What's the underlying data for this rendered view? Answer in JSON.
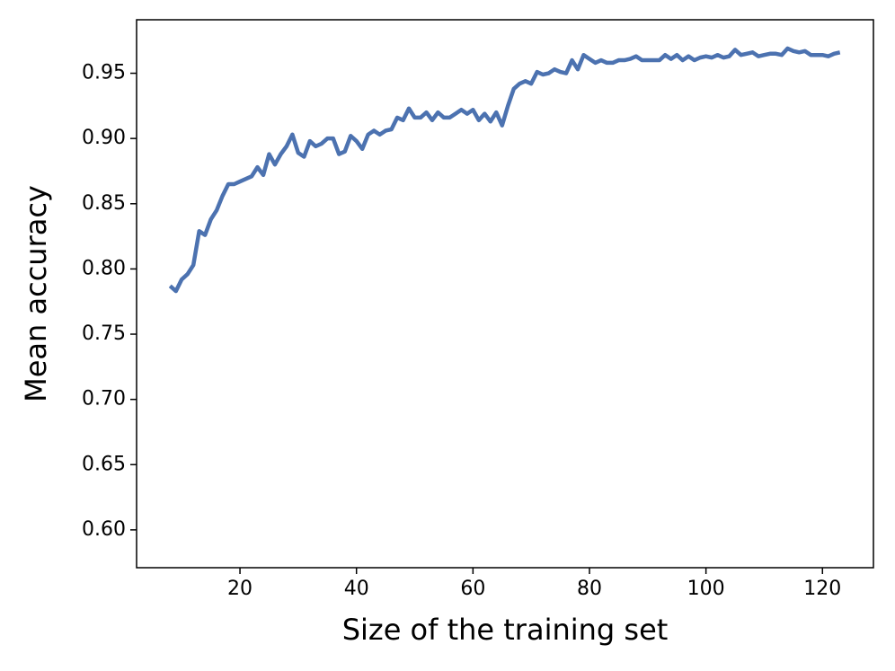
{
  "chart_data": {
    "type": "line",
    "xlabel": "Size of the training set",
    "ylabel": "Mean accuracy",
    "x": [
      8,
      9,
      10,
      11,
      12,
      13,
      14,
      15,
      16,
      17,
      18,
      19,
      20,
      21,
      22,
      23,
      24,
      25,
      26,
      27,
      28,
      29,
      30,
      31,
      32,
      33,
      34,
      35,
      36,
      37,
      38,
      39,
      40,
      41,
      42,
      43,
      44,
      45,
      46,
      47,
      48,
      49,
      50,
      51,
      52,
      53,
      54,
      55,
      56,
      57,
      58,
      59,
      60,
      61,
      62,
      63,
      64,
      65,
      66,
      67,
      68,
      69,
      70,
      71,
      72,
      73,
      74,
      75,
      76,
      77,
      78,
      79,
      80,
      81,
      82,
      83,
      84,
      85,
      86,
      87,
      88,
      89,
      90,
      91,
      92,
      93,
      94,
      95,
      96,
      97,
      98,
      99,
      100,
      101,
      102,
      103,
      104,
      105,
      106,
      107,
      108,
      109,
      110,
      111,
      112,
      113,
      114,
      115,
      116,
      117,
      118,
      119,
      120,
      121,
      122,
      123
    ],
    "series": [
      {
        "color": "#4c72b0",
        "values": [
          0.787,
          0.783,
          0.792,
          0.796,
          0.803,
          0.829,
          0.826,
          0.838,
          0.845,
          0.856,
          0.865,
          0.865,
          0.867,
          0.869,
          0.871,
          0.878,
          0.872,
          0.888,
          0.88,
          0.888,
          0.894,
          0.903,
          0.889,
          0.886,
          0.898,
          0.894,
          0.896,
          0.9,
          0.9,
          0.888,
          0.89,
          0.902,
          0.898,
          0.892,
          0.903,
          0.906,
          0.903,
          0.906,
          0.907,
          0.916,
          0.914,
          0.923,
          0.916,
          0.916,
          0.92,
          0.914,
          0.92,
          0.916,
          0.916,
          0.919,
          0.922,
          0.919,
          0.922,
          0.914,
          0.919,
          0.913,
          0.92,
          0.91,
          0.925,
          0.938,
          0.942,
          0.944,
          0.942,
          0.951,
          0.949,
          0.95,
          0.953,
          0.951,
          0.95,
          0.96,
          0.953,
          0.964,
          0.961,
          0.958,
          0.96,
          0.958,
          0.958,
          0.96,
          0.96,
          0.961,
          0.963,
          0.96,
          0.96,
          0.96,
          0.96,
          0.964,
          0.961,
          0.964,
          0.96,
          0.963,
          0.96,
          0.962,
          0.963,
          0.962,
          0.964,
          0.962,
          0.963,
          0.968,
          0.964,
          0.965,
          0.966,
          0.963,
          0.964,
          0.965,
          0.965,
          0.964,
          0.969,
          0.967,
          0.966,
          0.967,
          0.964,
          0.964,
          0.964,
          0.963,
          0.965,
          0.966
        ]
      }
    ],
    "xlim": [
      2.25,
      128.75
    ],
    "xticks": [
      20,
      40,
      60,
      80,
      100,
      120
    ],
    "ylim": [
      0.571,
      0.991
    ],
    "yticks": [
      {
        "value": 0.6,
        "label": "0.60"
      },
      0.65,
      {
        "value": 0.7,
        "label": "0.70"
      },
      0.75,
      {
        "value": 0.8,
        "label": "0.80"
      },
      0.85,
      {
        "value": 0.9,
        "label": "0.90"
      },
      0.95
    ]
  }
}
